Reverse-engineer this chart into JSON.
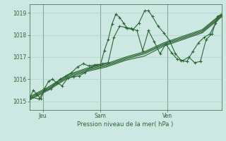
{
  "xlabel": "Pression niveau de la mer( hPa )",
  "background_color": "#cde8e2",
  "grid_color": "#a8cdc8",
  "line_color": "#2d6634",
  "ylim": [
    1014.6,
    1019.4
  ],
  "yticks": [
    1015,
    1016,
    1017,
    1018,
    1019
  ],
  "xtick_labels": [
    "Jeu",
    "Sam",
    "Ven"
  ],
  "xtick_positions": [
    0.07,
    0.37,
    0.72
  ],
  "vline_positions": [
    0.07,
    0.37,
    0.72
  ],
  "series": [
    {
      "x": [
        0.0,
        0.02,
        0.04,
        0.06,
        0.08,
        0.1,
        0.12,
        0.14,
        0.16,
        0.19,
        0.22,
        0.25,
        0.28,
        0.31,
        0.34,
        0.37,
        0.39,
        0.41,
        0.43,
        0.45,
        0.47,
        0.49,
        0.51,
        0.54,
        0.57,
        0.6,
        0.62,
        0.64,
        0.67,
        0.7,
        0.73,
        0.76,
        0.79,
        0.82,
        0.85,
        0.88,
        0.91,
        0.94,
        0.97,
        1.0
      ],
      "y": [
        1015.1,
        1015.5,
        1015.3,
        1015.1,
        1015.6,
        1015.9,
        1016.0,
        1015.85,
        1016.0,
        1016.15,
        1016.3,
        1016.55,
        1016.7,
        1016.6,
        1016.65,
        1016.65,
        1017.3,
        1017.8,
        1018.5,
        1018.95,
        1018.8,
        1018.55,
        1018.3,
        1018.25,
        1018.55,
        1019.1,
        1019.1,
        1018.85,
        1018.4,
        1018.1,
        1017.75,
        1017.15,
        1016.85,
        1016.8,
        1017.25,
        1017.65,
        1017.9,
        1018.05,
        1018.55,
        1018.9
      ],
      "marker": true,
      "lw": 0.8
    },
    {
      "x": [
        0.0,
        0.1,
        0.2,
        0.3,
        0.4,
        0.5,
        0.6,
        0.7,
        0.8,
        0.9,
        1.0
      ],
      "y": [
        1015.05,
        1015.5,
        1016.05,
        1016.35,
        1016.55,
        1016.85,
        1017.05,
        1017.5,
        1017.8,
        1018.1,
        1018.82
      ],
      "marker": false,
      "lw": 0.8
    },
    {
      "x": [
        0.0,
        0.1,
        0.2,
        0.3,
        0.4,
        0.5,
        0.6,
        0.7,
        0.8,
        0.9,
        1.0
      ],
      "y": [
        1015.1,
        1015.55,
        1016.1,
        1016.4,
        1016.6,
        1016.9,
        1017.15,
        1017.55,
        1017.85,
        1018.15,
        1018.87
      ],
      "marker": false,
      "lw": 0.8
    },
    {
      "x": [
        0.0,
        0.1,
        0.2,
        0.3,
        0.4,
        0.5,
        0.6,
        0.7,
        0.8,
        0.9,
        1.0
      ],
      "y": [
        1015.15,
        1015.6,
        1016.15,
        1016.45,
        1016.65,
        1016.95,
        1017.2,
        1017.6,
        1017.9,
        1018.2,
        1018.92
      ],
      "marker": false,
      "lw": 0.8
    },
    {
      "x": [
        0.0,
        0.1,
        0.2,
        0.3,
        0.4,
        0.5,
        0.6,
        0.7,
        0.8,
        0.9,
        1.0
      ],
      "y": [
        1015.2,
        1015.65,
        1016.2,
        1016.5,
        1016.7,
        1017.0,
        1017.25,
        1017.65,
        1017.95,
        1018.25,
        1018.97
      ],
      "marker": false,
      "lw": 0.8
    },
    {
      "x": [
        0.0,
        0.05,
        0.08,
        0.11,
        0.14,
        0.17,
        0.2,
        0.23,
        0.26,
        0.29,
        0.32,
        0.35,
        0.38,
        0.41,
        0.44,
        0.47,
        0.5,
        0.53,
        0.56,
        0.59,
        0.62,
        0.65,
        0.68,
        0.71,
        0.74,
        0.77,
        0.8,
        0.83,
        0.86,
        0.89,
        0.92,
        0.95,
        0.98,
        1.0
      ],
      "y": [
        1015.2,
        1015.1,
        1015.5,
        1015.55,
        1015.85,
        1015.7,
        1016.05,
        1016.1,
        1016.15,
        1016.3,
        1016.55,
        1016.65,
        1016.7,
        1016.75,
        1017.9,
        1018.4,
        1018.35,
        1018.3,
        1018.2,
        1017.3,
        1018.2,
        1017.7,
        1017.15,
        1017.6,
        1017.2,
        1016.9,
        1016.85,
        1017.0,
        1016.75,
        1016.8,
        1017.8,
        1018.05,
        1018.85,
        1018.9
      ],
      "marker": true,
      "lw": 0.8
    }
  ],
  "marker_style": "+",
  "marker_size": 3.5,
  "marker_lw": 0.8
}
